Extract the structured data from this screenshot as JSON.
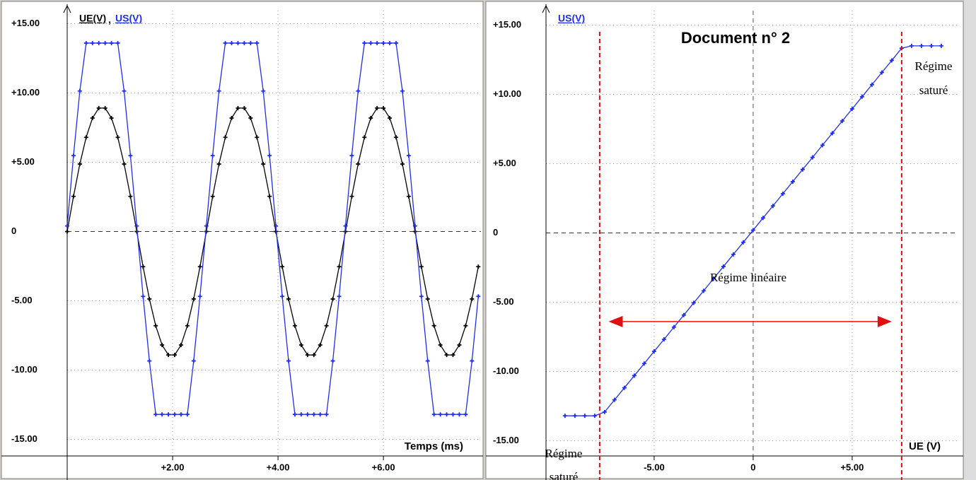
{
  "chart_data": [
    {
      "type": "line",
      "legend_separator": ",",
      "xlabel": "Temps (ms)",
      "x": [
        0,
        0.12,
        0.24,
        0.36,
        0.48,
        0.6,
        0.72,
        0.84,
        0.96,
        1.08,
        1.2,
        1.32,
        1.44,
        1.56,
        1.68,
        1.8,
        1.92,
        2.04,
        2.16,
        2.28,
        2.4,
        2.52,
        2.64,
        2.76,
        2.88,
        3,
        3.12,
        3.24,
        3.36,
        3.48,
        3.6,
        3.72,
        3.84,
        3.96,
        4.08,
        4.2,
        4.32,
        4.44,
        4.56,
        4.68,
        4.8,
        4.92,
        5.04,
        5.16,
        5.28,
        5.4,
        5.52,
        5.64,
        5.76,
        5.88,
        6,
        6.12,
        6.24,
        6.36,
        6.48,
        6.6,
        6.72,
        6.84,
        6.96,
        7.08,
        7.2,
        7.32,
        7.44,
        7.56,
        7.68,
        7.8
      ],
      "series": [
        {
          "name": "UE(V)",
          "color": "#000000",
          "values": [
            0,
            2.54,
            4.87,
            6.8,
            8.19,
            8.91,
            8.91,
            8.19,
            6.8,
            4.87,
            2.54,
            0,
            -2.54,
            -4.87,
            -6.8,
            -8.19,
            -8.91,
            -8.91,
            -8.19,
            -6.8,
            -4.87,
            -2.54,
            0,
            2.54,
            4.87,
            6.8,
            8.19,
            8.91,
            8.91,
            8.19,
            6.8,
            4.87,
            2.54,
            0,
            -2.54,
            -4.87,
            -6.8,
            -8.19,
            -8.91,
            -8.91,
            -8.19,
            -6.8,
            -4.87,
            -2.54,
            0,
            2.54,
            4.87,
            6.8,
            8.19,
            8.91,
            8.91,
            8.19,
            6.8,
            4.87,
            2.54,
            0,
            -2.54,
            -4.87,
            -6.8,
            -8.19,
            -8.91,
            -8.91,
            -8.19,
            -6.8,
            -4.87,
            -2.54
          ]
        },
        {
          "name": "US(V)",
          "color": "#1f2fe8",
          "values": [
            0.4,
            5.48,
            10.14,
            13.6,
            13.6,
            13.6,
            13.6,
            13.6,
            13.6,
            10.14,
            5.48,
            0.4,
            -4.68,
            -9.34,
            -13.2,
            -13.2,
            -13.2,
            -13.2,
            -13.2,
            -13.2,
            -9.34,
            -4.68,
            0.4,
            5.48,
            10.14,
            13.6,
            13.6,
            13.6,
            13.6,
            13.6,
            13.6,
            10.14,
            5.48,
            0.4,
            -4.68,
            -9.34,
            -13.2,
            -13.2,
            -13.2,
            -13.2,
            -13.2,
            -13.2,
            -9.34,
            -4.68,
            0.4,
            5.48,
            10.14,
            13.6,
            13.6,
            13.6,
            13.6,
            13.6,
            13.6,
            10.14,
            5.48,
            0.4,
            -4.68,
            -9.34,
            -13.2,
            -13.2,
            -13.2,
            -13.2,
            -13.2,
            -13.2,
            -9.34,
            -4.68
          ]
        }
      ],
      "xlim": [
        0,
        7.85
      ],
      "ylim": [
        -16.2,
        16.2
      ],
      "xticks": [
        {
          "value": 2,
          "label": "+2.00"
        },
        {
          "value": 4,
          "label": "+4.00"
        },
        {
          "value": 6,
          "label": "+6.00"
        }
      ],
      "yticks": [
        {
          "value": 15,
          "label": "+15.00"
        },
        {
          "value": 10,
          "label": "+10.00"
        },
        {
          "value": 5,
          "label": "+5.00"
        },
        0,
        {
          "value": -5,
          "label": "-5.00"
        },
        {
          "value": -10,
          "label": "-10.00"
        },
        {
          "value": -15,
          "label": "-15.00"
        }
      ],
      "grid": true
    },
    {
      "type": "line",
      "title": "Document n° 2",
      "xlabel": "UE (V)",
      "x": [
        -9.5,
        -9,
        -8.5,
        -8,
        -7.5,
        -7,
        -6.5,
        -6,
        -5.5,
        -5,
        -4.5,
        -4,
        -3.5,
        -3,
        -2.5,
        -2,
        -1.5,
        -1,
        -0.5,
        0,
        0.5,
        1,
        1.5,
        2,
        2.5,
        3,
        3.5,
        4,
        4.5,
        5,
        5.5,
        6,
        6.5,
        7,
        7.5,
        8,
        8.5,
        9,
        9.5
      ],
      "series": [
        {
          "name": "US(V)",
          "color": "#1f2fe8",
          "values": [
            -13.2,
            -13.2,
            -13.2,
            -13.2,
            -12.93,
            -12.05,
            -11.18,
            -10.3,
            -9.43,
            -8.55,
            -7.68,
            -6.8,
            -5.93,
            -5.05,
            -4.18,
            -3.3,
            -2.43,
            -1.55,
            -0.68,
            0.2,
            1.08,
            1.95,
            2.83,
            3.7,
            4.58,
            5.45,
            6.33,
            7.2,
            8.08,
            8.95,
            9.83,
            10.7,
            11.58,
            12.45,
            13.33,
            13.5,
            13.5,
            13.5,
            13.5
          ]
        }
      ],
      "xlim": [
        -10.46,
        10.36
      ],
      "ylim": [
        -16.1,
        16.3
      ],
      "xticks": [
        {
          "value": -5,
          "label": "-5.00"
        },
        0,
        {
          "value": 5,
          "label": "+5.00"
        }
      ],
      "yticks": [
        {
          "value": 15,
          "label": "+15.00"
        },
        {
          "value": 10,
          "label": "+10.00"
        },
        {
          "value": 5,
          "label": "+5.00"
        },
        0,
        {
          "value": -5,
          "label": "-5.00"
        },
        {
          "value": -10,
          "label": "-10.00"
        },
        {
          "value": -15,
          "label": "-15.00"
        }
      ],
      "grid": true,
      "vlines": [
        -7.75,
        7.5
      ],
      "arrow": {
        "x": [
          -7.3,
          7.0
        ],
        "y": -6.4
      },
      "annotations": [
        {
          "text": [
            "Régime",
            "saturé"
          ]
        },
        {
          "text": [
            "Régime",
            "saturé"
          ]
        },
        {
          "text": "Régime linéaire"
        }
      ]
    }
  ]
}
